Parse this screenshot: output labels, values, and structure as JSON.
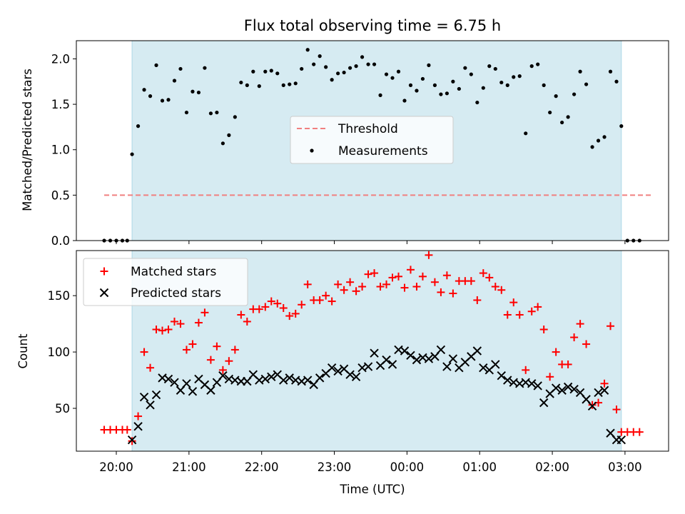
{
  "figure": {
    "title": "Flux total observing time = 6.75 h",
    "xlabel": "Time (UTC)",
    "colors": {
      "background": "#ffffff",
      "observing_band": "#add8e6",
      "threshold": "#f08080",
      "measurements": "#000000",
      "matched": "#ff0000",
      "predicted": "#000000"
    }
  },
  "chart_data": [
    {
      "type": "scatter",
      "panel": "top",
      "title": "Flux total observing time = 6.75 h",
      "ylabel": "Matched/Predicted stars",
      "xlabel": "",
      "x_unit": "hours since 20:00 UTC",
      "xlim": [
        -0.55,
        7.6
      ],
      "ylim": [
        0,
        2.2
      ],
      "yticks": [
        "0.0",
        "0.5",
        "1.0",
        "1.5",
        "2.0"
      ],
      "ytick_values": [
        0,
        0.5,
        1.0,
        1.5,
        2.0
      ],
      "grid": false,
      "legend_position": "center",
      "observing_window": [
        "20:13",
        "02:57"
      ],
      "threshold": {
        "name": "Threshold",
        "value": 0.5,
        "x_range": [
          "19:50",
          "03:22"
        ]
      },
      "series": [
        {
          "name": "Measurements",
          "x": [
            "19:50",
            "19:55",
            "20:00",
            "20:05",
            "20:09",
            "20:13",
            "20:18",
            "20:23",
            "20:28",
            "20:33",
            "20:38",
            "20:43",
            "20:48",
            "20:53",
            "20:58",
            "21:03",
            "21:08",
            "21:13",
            "21:18",
            "21:23",
            "21:28",
            "21:33",
            "21:38",
            "21:43",
            "21:48",
            "21:53",
            "21:58",
            "22:03",
            "22:08",
            "22:13",
            "22:18",
            "22:23",
            "22:28",
            "22:33",
            "22:38",
            "22:43",
            "22:48",
            "22:53",
            "22:58",
            "23:03",
            "23:08",
            "23:13",
            "23:18",
            "23:23",
            "23:28",
            "23:33",
            "23:38",
            "23:43",
            "23:48",
            "23:53",
            "23:58",
            "00:03",
            "00:08",
            "00:13",
            "00:18",
            "00:23",
            "00:28",
            "00:33",
            "00:38",
            "00:43",
            "00:48",
            "00:53",
            "00:58",
            "01:03",
            "01:08",
            "01:13",
            "01:18",
            "01:23",
            "01:28",
            "01:33",
            "01:38",
            "01:43",
            "01:48",
            "01:53",
            "01:58",
            "02:03",
            "02:08",
            "02:13",
            "02:18",
            "02:23",
            "02:28",
            "02:33",
            "02:38",
            "02:43",
            "02:48",
            "02:53",
            "02:57",
            "03:02",
            "03:07",
            "03:12"
          ],
          "y": [
            0,
            0,
            0,
            0,
            0,
            0.95,
            1.26,
            1.66,
            1.59,
            1.93,
            1.54,
            1.55,
            1.76,
            1.89,
            1.41,
            1.64,
            1.63,
            1.9,
            1.4,
            1.41,
            1.07,
            1.16,
            1.36,
            1.74,
            1.71,
            1.86,
            1.7,
            1.86,
            1.87,
            1.84,
            1.71,
            1.72,
            1.73,
            1.89,
            2.1,
            1.94,
            2.03,
            1.91,
            1.77,
            1.84,
            1.85,
            1.9,
            1.92,
            2.02,
            1.94,
            1.94,
            1.6,
            1.83,
            1.79,
            1.86,
            1.54,
            1.71,
            1.65,
            1.78,
            1.93,
            1.71,
            1.61,
            1.62,
            1.75,
            1.67,
            1.9,
            1.83,
            1.52,
            1.68,
            1.92,
            1.89,
            1.74,
            1.71,
            1.8,
            1.81,
            1.18,
            1.92,
            1.94,
            1.71,
            1.41,
            1.59,
            1.3,
            1.36,
            1.61,
            1.86,
            1.72,
            1.03,
            1.1,
            1.14,
            1.86,
            1.75,
            1.26,
            0,
            0,
            0
          ]
        }
      ]
    },
    {
      "type": "scatter",
      "panel": "bottom",
      "title": "",
      "ylabel": "Count",
      "xlabel": "Time (UTC)",
      "x_unit": "hours since 20:00 UTC",
      "xlim": [
        -0.55,
        7.6
      ],
      "ylim": [
        12,
        190
      ],
      "xticks": [
        "20:00",
        "21:00",
        "22:00",
        "23:00",
        "00:00",
        "01:00",
        "02:00",
        "03:00"
      ],
      "yticks": [
        "50",
        "100",
        "150"
      ],
      "ytick_values": [
        50,
        100,
        150
      ],
      "grid": false,
      "legend_position": "upper left",
      "observing_window": [
        "20:13",
        "02:57"
      ],
      "series": [
        {
          "name": "Matched stars",
          "marker": "plus",
          "x": [
            "19:50",
            "19:55",
            "20:00",
            "20:05",
            "20:09",
            "20:13",
            "20:18",
            "20:23",
            "20:28",
            "20:33",
            "20:38",
            "20:43",
            "20:48",
            "20:53",
            "20:58",
            "21:03",
            "21:08",
            "21:13",
            "21:18",
            "21:23",
            "21:28",
            "21:33",
            "21:38",
            "21:43",
            "21:48",
            "21:53",
            "21:58",
            "22:03",
            "22:08",
            "22:13",
            "22:18",
            "22:23",
            "22:28",
            "22:33",
            "22:38",
            "22:43",
            "22:48",
            "22:53",
            "22:58",
            "23:03",
            "23:08",
            "23:13",
            "23:18",
            "23:23",
            "23:28",
            "23:33",
            "23:38",
            "23:43",
            "23:48",
            "23:53",
            "23:58",
            "00:03",
            "00:08",
            "00:13",
            "00:18",
            "00:23",
            "00:28",
            "00:33",
            "00:38",
            "00:43",
            "00:48",
            "00:53",
            "00:58",
            "01:03",
            "01:08",
            "01:13",
            "01:18",
            "01:23",
            "01:28",
            "01:33",
            "01:38",
            "01:43",
            "01:48",
            "01:53",
            "01:58",
            "02:03",
            "02:08",
            "02:13",
            "02:18",
            "02:23",
            "02:28",
            "02:33",
            "02:38",
            "02:43",
            "02:48",
            "02:53",
            "02:57",
            "03:02",
            "03:07",
            "03:12"
          ],
          "y": [
            31,
            31,
            31,
            31,
            31,
            21,
            43,
            100,
            86,
            120,
            119,
            120,
            127,
            125,
            102,
            107,
            126,
            135,
            93,
            105,
            84,
            92,
            102,
            133,
            127,
            138,
            138,
            140,
            145,
            143,
            139,
            132,
            134,
            142,
            160,
            146,
            146,
            150,
            145,
            160,
            155,
            162,
            154,
            158,
            169,
            170,
            158,
            160,
            166,
            167,
            157,
            173,
            158,
            167,
            186,
            162,
            153,
            168,
            152,
            163,
            163,
            163,
            146,
            170,
            166,
            158,
            155,
            133,
            144,
            133,
            84,
            136,
            140,
            120,
            78,
            100,
            89,
            89,
            113,
            125,
            107,
            53,
            55,
            72,
            123,
            49,
            29,
            29,
            29,
            29
          ]
        },
        {
          "name": "Predicted stars",
          "marker": "x",
          "x": [
            "20:13",
            "20:18",
            "20:23",
            "20:28",
            "20:33",
            "20:38",
            "20:43",
            "20:48",
            "20:53",
            "20:58",
            "21:03",
            "21:08",
            "21:13",
            "21:18",
            "21:23",
            "21:28",
            "21:33",
            "21:38",
            "21:43",
            "21:48",
            "21:53",
            "21:58",
            "22:03",
            "22:08",
            "22:13",
            "22:18",
            "22:23",
            "22:28",
            "22:33",
            "22:38",
            "22:43",
            "22:48",
            "22:53",
            "22:58",
            "23:03",
            "23:08",
            "23:13",
            "23:18",
            "23:23",
            "23:28",
            "23:33",
            "23:38",
            "23:43",
            "23:48",
            "23:53",
            "23:58",
            "00:03",
            "00:08",
            "00:13",
            "00:18",
            "00:23",
            "00:28",
            "00:33",
            "00:38",
            "00:43",
            "00:48",
            "00:53",
            "00:58",
            "01:03",
            "01:08",
            "01:13",
            "01:18",
            "01:23",
            "01:28",
            "01:33",
            "01:38",
            "01:43",
            "01:48",
            "01:53",
            "01:58",
            "02:03",
            "02:08",
            "02:13",
            "02:18",
            "02:23",
            "02:28",
            "02:33",
            "02:38",
            "02:43",
            "02:48",
            "02:53",
            "02:57"
          ],
          "y": [
            22,
            34,
            60,
            53,
            62,
            77,
            76,
            73,
            66,
            72,
            65,
            76,
            71,
            66,
            73,
            79,
            76,
            75,
            74,
            74,
            80,
            75,
            76,
            78,
            80,
            75,
            77,
            75,
            74,
            75,
            71,
            77,
            81,
            86,
            83,
            85,
            80,
            78,
            86,
            87,
            99,
            88,
            93,
            89,
            102,
            101,
            97,
            93,
            95,
            94,
            96,
            102,
            87,
            94,
            86,
            91,
            96,
            101,
            86,
            84,
            89,
            79,
            75,
            73,
            72,
            73,
            72,
            70,
            55,
            63,
            68,
            66,
            69,
            67,
            64,
            58,
            52,
            64,
            66,
            28,
            22,
            22
          ]
        }
      ]
    }
  ]
}
